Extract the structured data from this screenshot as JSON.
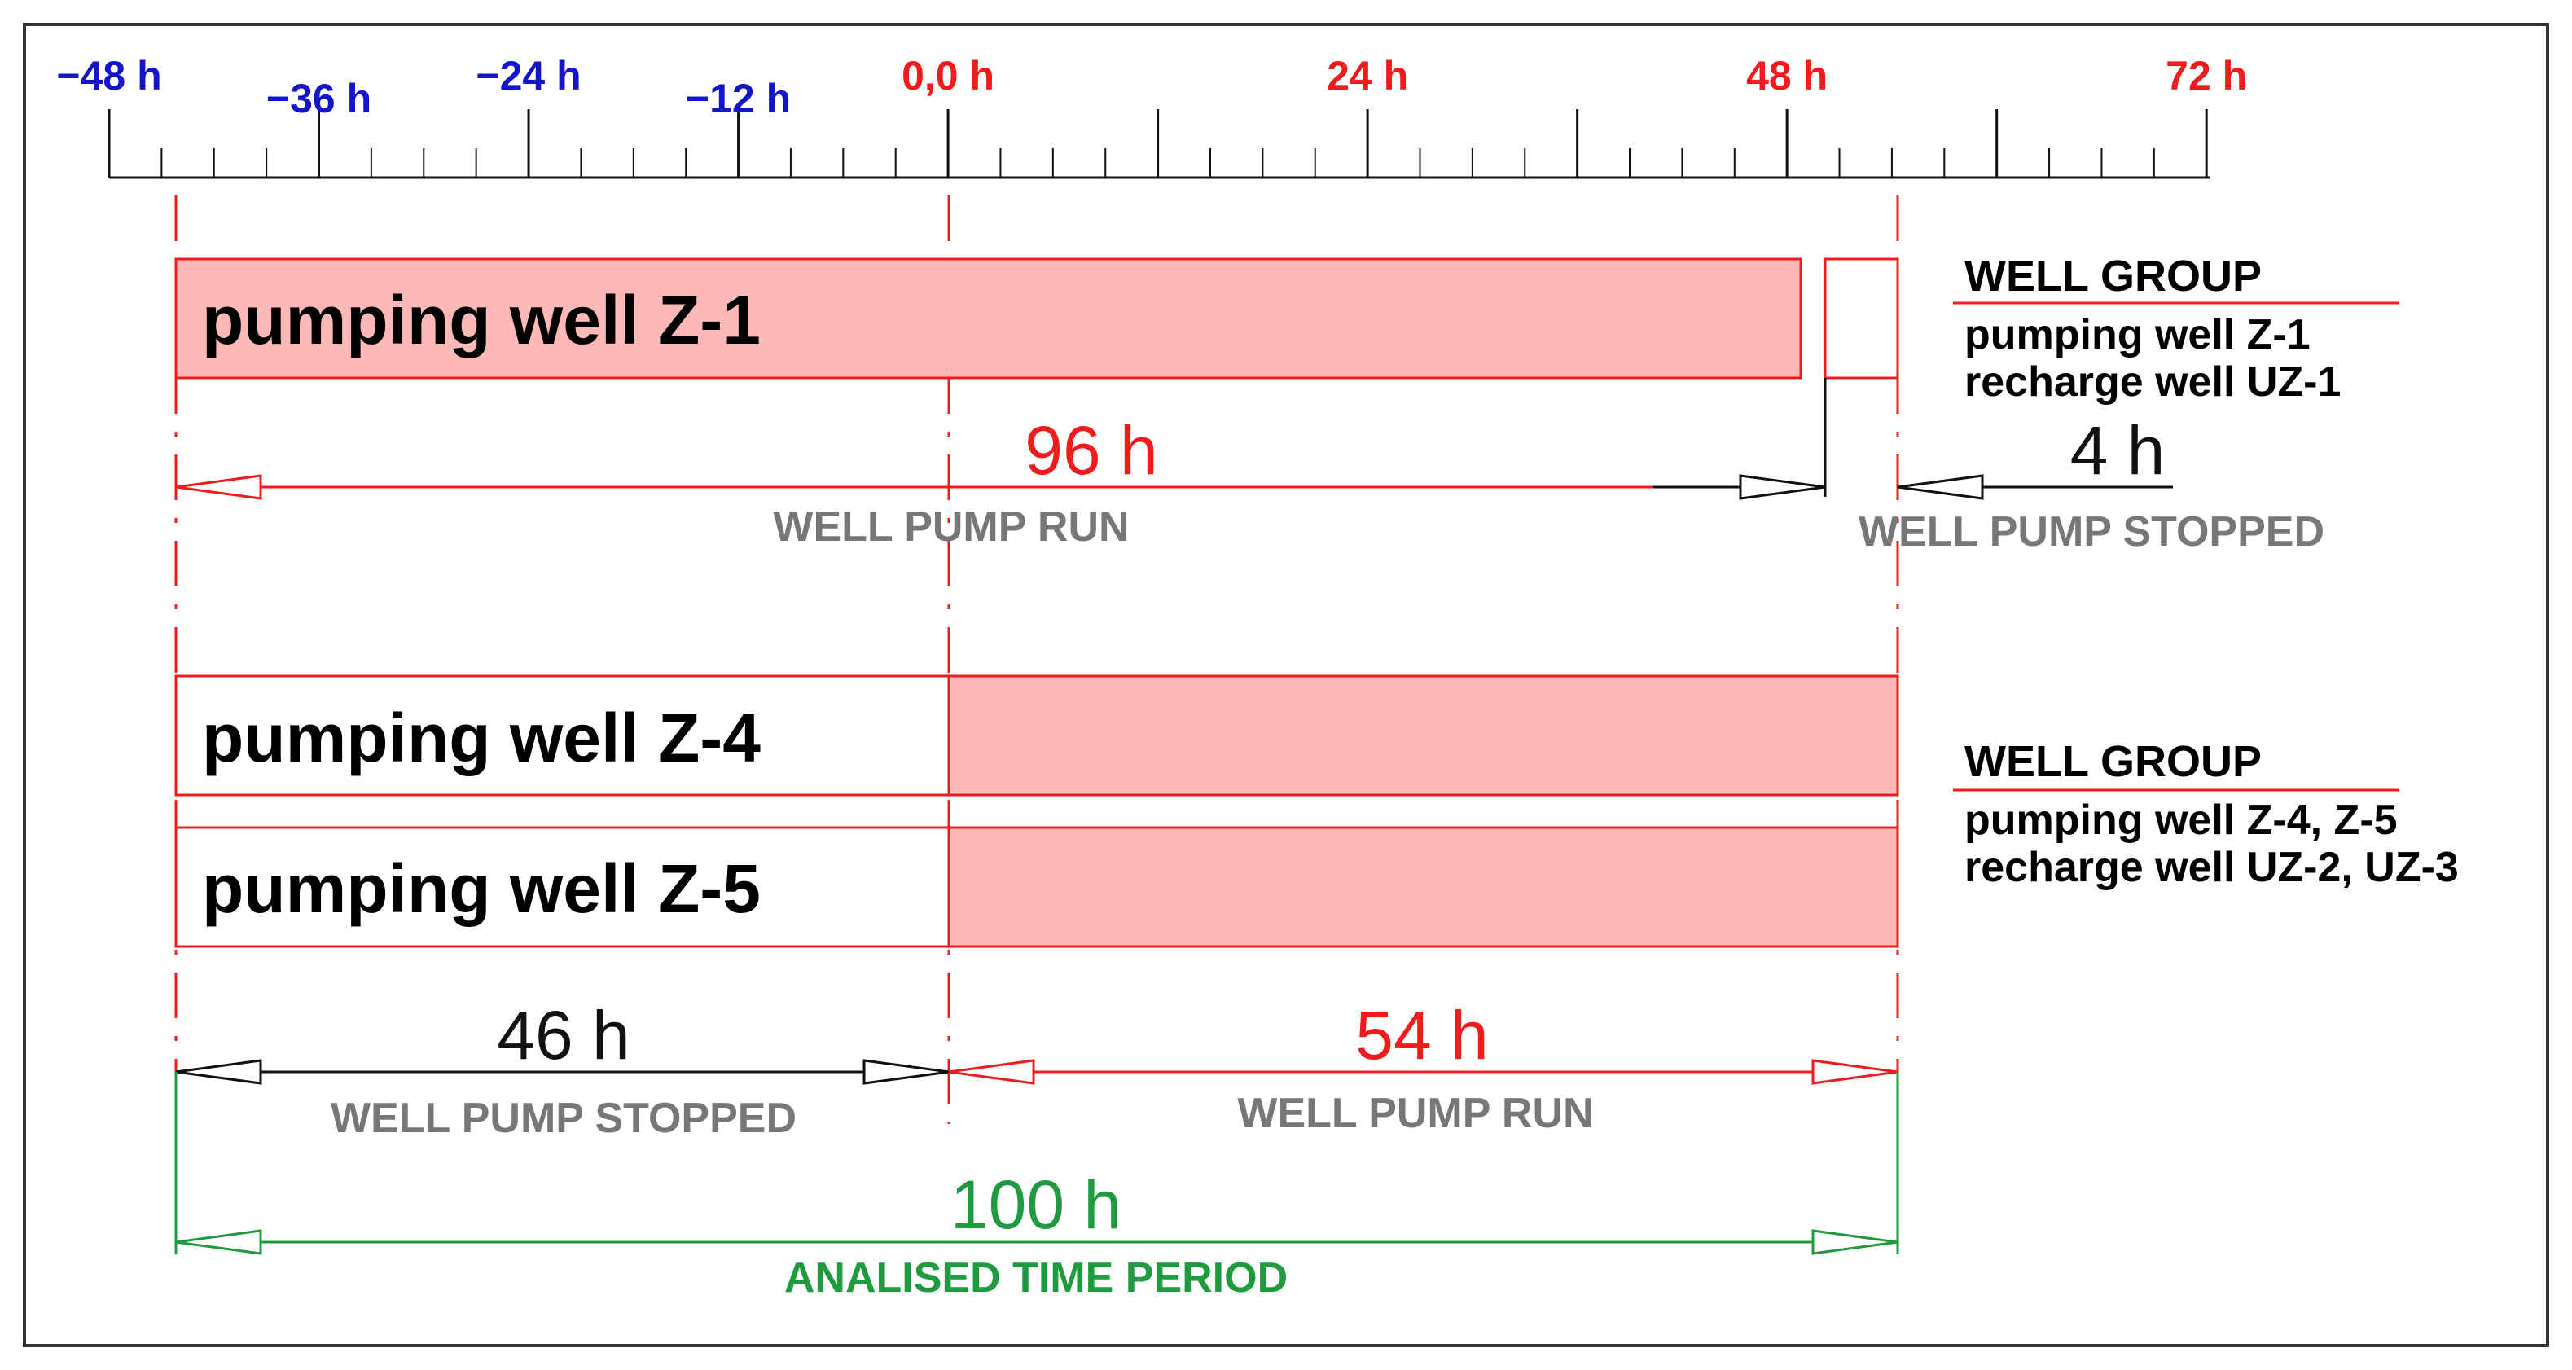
{
  "colors": {
    "neg_ticks": "#1515c8",
    "pos_ticks": "#ee1c1c",
    "run": "#ee1c1c",
    "run_fill": "#ffb8b8",
    "stopped": "#111111",
    "period": "#1f9a3e",
    "caption": "#777777",
    "border": "#333333"
  },
  "timeline": {
    "labels": [
      {
        "text": "−48 h",
        "value": -48,
        "row": "upper",
        "tone": "neg"
      },
      {
        "text": "−36 h",
        "value": -36,
        "row": "lower",
        "tone": "neg"
      },
      {
        "text": "−24 h",
        "value": -24,
        "row": "upper",
        "tone": "neg"
      },
      {
        "text": "−12 h",
        "value": -12,
        "row": "lower",
        "tone": "neg"
      },
      {
        "text": "0,0 h",
        "value": 0,
        "row": "upper",
        "tone": "pos"
      },
      {
        "text": "24 h",
        "value": 24,
        "row": "upper",
        "tone": "pos"
      },
      {
        "text": "48 h",
        "value": 48,
        "row": "upper",
        "tone": "pos"
      },
      {
        "text": "72 h",
        "value": 72,
        "row": "upper",
        "tone": "pos"
      }
    ]
  },
  "wells": [
    {
      "label": "pumping well Z-1",
      "run_start": -46,
      "run_end": 50,
      "stop_start": 50,
      "stop_end": 54
    },
    {
      "label": "pumping well Z-4",
      "stop_start": -46,
      "stop_end": 0,
      "run_start": 0,
      "run_end": 54
    },
    {
      "label": "pumping well Z-5",
      "stop_start": -46,
      "stop_end": 0,
      "run_start": 0,
      "run_end": 54
    }
  ],
  "groups": [
    {
      "title": "WELL GROUP",
      "line1": "pumping well Z-1",
      "line2": "recharge well UZ-1"
    },
    {
      "title": "WELL GROUP",
      "line1": "pumping well Z-4, Z-5",
      "line2": "recharge well UZ-2, UZ-3"
    }
  ],
  "dimensions": {
    "z1_run": {
      "value": "96 h",
      "caption": "WELL PUMP RUN"
    },
    "z1_stop": {
      "value": "4 h",
      "caption": "WELL PUMP STOPPED"
    },
    "z45_stop": {
      "value": "46 h",
      "caption": "WELL PUMP STOPPED"
    },
    "z45_run": {
      "value": "54 h",
      "caption": "WELL PUMP RUN"
    },
    "period": {
      "value": "100 h",
      "caption": "ANALISED TIME PERIOD"
    }
  }
}
